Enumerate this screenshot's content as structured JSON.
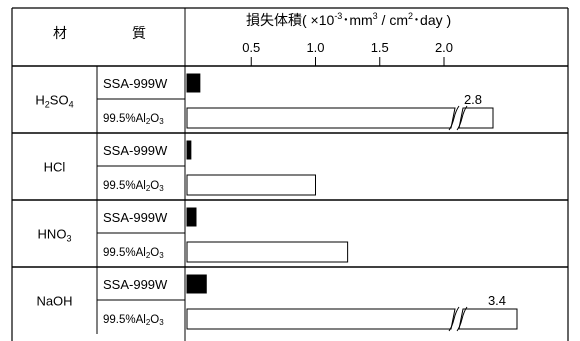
{
  "header": {
    "material_1": "材",
    "material_2": "質",
    "title_main": "損失体積( ×10",
    "title_exp1": "-3",
    "title_mid": "･mm",
    "title_exp2": "3",
    "title_mid2": " / cm",
    "title_exp3": "2",
    "title_end": "･day )"
  },
  "chart_data": {
    "type": "bar",
    "title": "損失体積( ×10-3･mm3 / cm2･day )",
    "xticks": [
      0.5,
      1.0,
      1.5,
      2.0
    ],
    "xtick_labels": [
      "0.5",
      "1.0",
      "1.5",
      "2.0"
    ],
    "xlim": [
      0,
      2.2
    ],
    "axis_break_after": 2.0,
    "groups": [
      {
        "name": "H2SO4",
        "label_main": "H",
        "label_parts": [
          "H",
          "2",
          "SO",
          "4"
        ],
        "rows": [
          {
            "material": "SSA-999W",
            "value": 0.1,
            "fill": "#000000"
          },
          {
            "material": "99.5%Al2O3",
            "value": 2.8,
            "fill": "#ffffff",
            "broken": true,
            "value_label": "2.8"
          }
        ]
      },
      {
        "name": "HCl",
        "label_parts": [
          "HCl"
        ],
        "rows": [
          {
            "material": "SSA-999W",
            "value": 0.03,
            "fill": "#000000"
          },
          {
            "material": "99.5%Al2O3",
            "value": 1.0,
            "fill": "#ffffff"
          }
        ]
      },
      {
        "name": "HNO3",
        "label_parts": [
          "HNO",
          "3"
        ],
        "rows": [
          {
            "material": "SSA-999W",
            "value": 0.07,
            "fill": "#000000"
          },
          {
            "material": "99.5%Al2O3",
            "value": 1.25,
            "fill": "#ffffff"
          }
        ]
      },
      {
        "name": "NaOH",
        "label_parts": [
          "NaOH"
        ],
        "rows": [
          {
            "material": "SSA-999W",
            "value": 0.15,
            "fill": "#000000"
          },
          {
            "material": "99.5%Al2O3",
            "value": 3.4,
            "fill": "#ffffff",
            "broken": true,
            "value_label": "3.4"
          }
        ]
      }
    ]
  }
}
